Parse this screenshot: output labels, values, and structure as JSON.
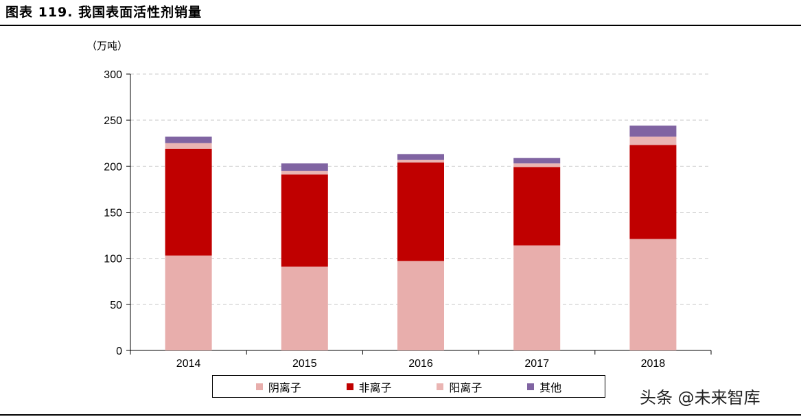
{
  "title": "图表 119. 我国表面活性剂销量",
  "unit_label": "（万吨）",
  "watermark": "头条 @未来智库",
  "chart_data": {
    "type": "bar",
    "stacked": true,
    "categories": [
      "2014",
      "2015",
      "2016",
      "2017",
      "2018"
    ],
    "series": [
      {
        "name": "阴离子",
        "color": "#e8aeac",
        "values": [
          103,
          91,
          97,
          114,
          121
        ]
      },
      {
        "name": "非离子",
        "color": "#c00000",
        "values": [
          116,
          100,
          107,
          85,
          102
        ]
      },
      {
        "name": "阳离子",
        "color": "#eab5b3",
        "values": [
          6,
          4,
          3,
          4,
          9
        ]
      },
      {
        "name": "其他",
        "color": "#8064a2",
        "values": [
          7,
          8,
          6,
          6,
          12
        ]
      }
    ],
    "yticks": [
      "0",
      "50",
      "100",
      "150",
      "200",
      "250",
      "300"
    ],
    "ylim": [
      0,
      300
    ],
    "grid": true,
    "legend_position": "bottom"
  }
}
